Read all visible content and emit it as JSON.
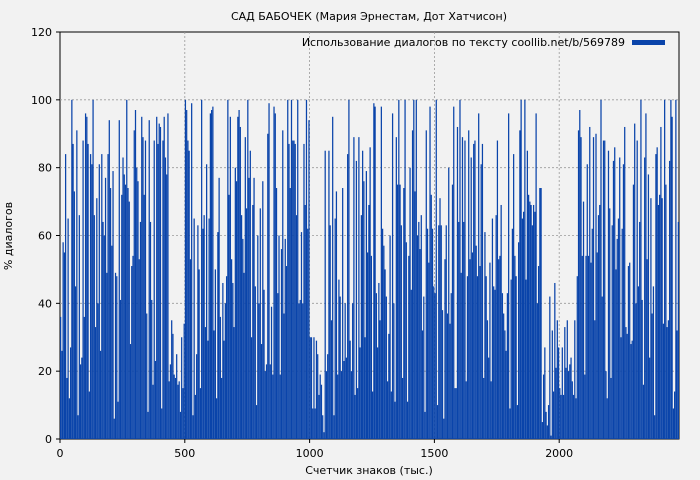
{
  "chart_data": {
    "type": "bar",
    "title": "САД БАБОЧЕК (Мария Эрнестам, Дот Хатчисон)",
    "xlabel": "Счетчик знаков (тыс.)",
    "ylabel": "% диалогов",
    "xlim": [
      0,
      2480
    ],
    "ylim": [
      0,
      120
    ],
    "xticks": [
      0,
      500,
      1000,
      1500,
      2000
    ],
    "yticks": [
      0,
      20,
      40,
      60,
      80,
      100,
      120
    ],
    "grid": true,
    "legend_position": "top-right",
    "bar_step": 5,
    "series": [
      {
        "name": "Использование диалогов по тексту coollib.net/b/569789",
        "color": "#0a44aa",
        "sections": [
          {
            "start": 0,
            "end": 440,
            "min": 5,
            "max": 100
          },
          {
            "start": 440,
            "end": 500,
            "min": 0,
            "max": 35
          },
          {
            "start": 500,
            "end": 1000,
            "min": 5,
            "max": 100
          },
          {
            "start": 1000,
            "end": 1060,
            "min": 0,
            "max": 30
          },
          {
            "start": 1060,
            "end": 1930,
            "min": 5,
            "max": 100
          },
          {
            "start": 1930,
            "end": 1990,
            "min": 0,
            "max": 55
          },
          {
            "start": 1990,
            "end": 2070,
            "min": 0,
            "max": 35
          },
          {
            "start": 2070,
            "end": 2480,
            "min": 5,
            "max": 100
          }
        ]
      }
    ]
  }
}
